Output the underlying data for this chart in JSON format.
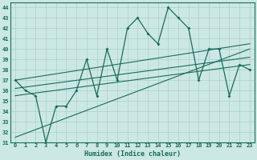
{
  "xlabel": "Humidex (Indice chaleur)",
  "xlim": [
    -0.5,
    23.5
  ],
  "ylim": [
    31,
    44.5
  ],
  "yticks": [
    31,
    32,
    33,
    34,
    35,
    36,
    37,
    38,
    39,
    40,
    41,
    42,
    43,
    44
  ],
  "xticks": [
    0,
    1,
    2,
    3,
    4,
    5,
    6,
    7,
    8,
    9,
    10,
    11,
    12,
    13,
    14,
    15,
    16,
    17,
    18,
    19,
    20,
    21,
    22,
    23
  ],
  "bg_color": "#cce8e4",
  "line_color": "#1a6b5a",
  "grid_color": "#aacfcb",
  "main_line_x": [
    0,
    1,
    2,
    3,
    4,
    5,
    6,
    7,
    8,
    9,
    10,
    11,
    12,
    13,
    14,
    15,
    16,
    17,
    18,
    19,
    20,
    21,
    22,
    23
  ],
  "main_line_y": [
    37.0,
    36.0,
    35.5,
    31.0,
    34.5,
    34.5,
    36.0,
    39.0,
    35.5,
    40.0,
    37.0,
    42.0,
    43.0,
    41.5,
    40.5,
    44.0,
    43.0,
    42.0,
    37.0,
    40.0,
    40.0,
    35.5,
    38.5,
    38.0
  ],
  "line1_x": [
    0,
    23
  ],
  "line1_y": [
    37.0,
    40.5
  ],
  "line2_x": [
    0,
    23
  ],
  "line2_y": [
    36.2,
    39.2
  ],
  "line3_x": [
    0,
    23
  ],
  "line3_y": [
    35.5,
    38.5
  ],
  "line4_x": [
    0,
    23
  ],
  "line4_y": [
    31.5,
    40.0
  ]
}
